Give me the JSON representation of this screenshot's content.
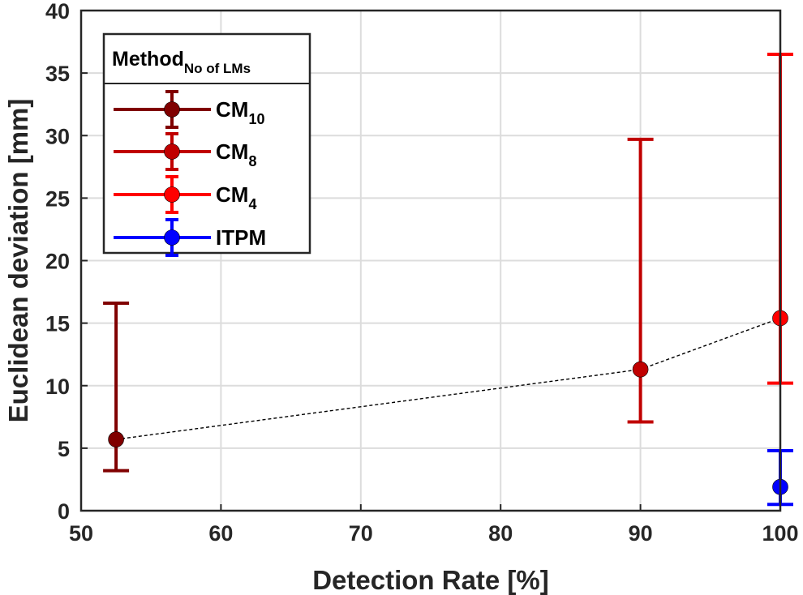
{
  "chart_data": {
    "type": "scatter",
    "xlabel": "Detection Rate [%]",
    "ylabel": "Euclidean deviation [mm]",
    "xlim": [
      50,
      100
    ],
    "ylim": [
      0,
      40
    ],
    "xticks": [
      50,
      60,
      70,
      80,
      90,
      100
    ],
    "yticks": [
      0,
      5,
      10,
      15,
      20,
      25,
      30,
      35,
      40
    ],
    "grid": true,
    "legend": {
      "title_main": "Method",
      "title_sub": "No of LMs",
      "placement": "top-left"
    },
    "series": [
      {
        "name": "CM",
        "name_sub": "10",
        "color": "#800000",
        "x": 52.5,
        "y": 5.7,
        "err_low": 3.2,
        "err_high": 16.6
      },
      {
        "name": "CM",
        "name_sub": "8",
        "color": "#c00000",
        "x": 90,
        "y": 11.3,
        "err_low": 7.1,
        "err_high": 29.7
      },
      {
        "name": "CM",
        "name_sub": "4",
        "color": "#ff0000",
        "x": 100,
        "y": 15.4,
        "err_low": 10.2,
        "err_high": 36.5
      },
      {
        "name": "ITPM",
        "name_sub": "",
        "color": "#0000ff",
        "x": 100,
        "y": 1.9,
        "err_low": 0.5,
        "err_high": 4.8
      }
    ],
    "trend_line": {
      "style": "dashed",
      "color": "#000000",
      "points": [
        [
          52.5,
          5.7
        ],
        [
          90,
          11.3
        ],
        [
          100,
          15.4
        ]
      ]
    }
  }
}
